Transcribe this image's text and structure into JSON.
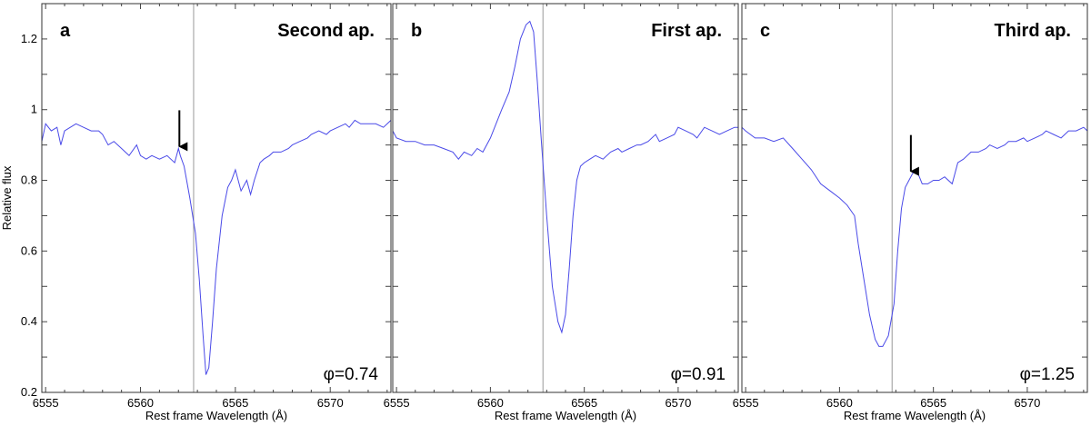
{
  "chart_data": [
    {
      "type": "line",
      "panel_letter": "a",
      "title": "Second ap.",
      "annotation": "φ=0.74",
      "xlabel": "Rest frame Wavelength (Å)",
      "ylabel": "Relative flux",
      "xlim": [
        6554.8,
        6573.2
      ],
      "ylim": [
        0.2,
        1.3
      ],
      "x_ticks": [
        "6555",
        "6560",
        "6565",
        "6570"
      ],
      "y_ticks": [
        "0.2",
        "0.4",
        "0.6",
        "0.8",
        "1",
        "1.2"
      ],
      "rest_wavelength_line": 6562.8,
      "arrow_at": 6562.05,
      "series": [
        {
          "color": "#4a4ae8",
          "x": [
            6554.8,
            6555.0,
            6555.3,
            6555.6,
            6555.8,
            6556.0,
            6556.3,
            6556.6,
            6557.0,
            6557.4,
            6557.8,
            6558.0,
            6558.3,
            6558.6,
            6559.0,
            6559.4,
            6559.8,
            6560.0,
            6560.3,
            6560.6,
            6561.0,
            6561.4,
            6561.8,
            6562.0,
            6562.1,
            6562.3,
            6562.6,
            6562.9,
            6563.1,
            6563.3,
            6563.45,
            6563.6,
            6563.8,
            6564.0,
            6564.3,
            6564.6,
            6564.8,
            6565.0,
            6565.3,
            6565.6,
            6565.8,
            6566.0,
            6566.3,
            6566.5,
            6566.8,
            6567.0,
            6567.4,
            6567.8,
            6568.0,
            6568.4,
            6568.8,
            6569.0,
            6569.4,
            6569.8,
            6570.0,
            6570.4,
            6570.8,
            6571.0,
            6571.3,
            6571.6,
            6572.0,
            6572.4,
            6572.8,
            6573.2
          ],
          "y": [
            0.91,
            0.96,
            0.94,
            0.95,
            0.9,
            0.94,
            0.95,
            0.96,
            0.95,
            0.94,
            0.94,
            0.93,
            0.9,
            0.91,
            0.89,
            0.87,
            0.9,
            0.87,
            0.86,
            0.87,
            0.86,
            0.87,
            0.85,
            0.89,
            0.87,
            0.84,
            0.75,
            0.65,
            0.52,
            0.36,
            0.25,
            0.27,
            0.4,
            0.55,
            0.7,
            0.78,
            0.8,
            0.83,
            0.77,
            0.8,
            0.76,
            0.8,
            0.85,
            0.86,
            0.87,
            0.88,
            0.88,
            0.89,
            0.9,
            0.91,
            0.92,
            0.93,
            0.94,
            0.93,
            0.94,
            0.95,
            0.96,
            0.95,
            0.97,
            0.96,
            0.96,
            0.96,
            0.95,
            0.97
          ]
        }
      ]
    },
    {
      "type": "line",
      "panel_letter": "b",
      "title": "First ap.",
      "annotation": "φ=0.91",
      "xlabel": "Rest frame Wavelength (Å)",
      "ylabel": "",
      "xlim": [
        6554.8,
        6573.2
      ],
      "ylim": [
        0.2,
        1.3
      ],
      "x_ticks": [
        "6555",
        "6560",
        "6565",
        "6570"
      ],
      "y_ticks": [],
      "rest_wavelength_line": 6562.8,
      "series": [
        {
          "color": "#4a4ae8",
          "x": [
            6554.8,
            6555.0,
            6555.5,
            6556.0,
            6556.5,
            6557.0,
            6557.5,
            6558.0,
            6558.3,
            6558.6,
            6559.0,
            6559.3,
            6559.6,
            6560.0,
            6560.3,
            6560.6,
            6561.0,
            6561.3,
            6561.6,
            6561.9,
            6562.1,
            6562.3,
            6562.5,
            6562.7,
            6563.0,
            6563.3,
            6563.6,
            6563.8,
            6564.0,
            6564.2,
            6564.4,
            6564.6,
            6564.8,
            6565.0,
            6565.3,
            6565.6,
            6566.0,
            6566.4,
            6566.8,
            6567.0,
            6567.4,
            6567.8,
            6568.0,
            6568.4,
            6568.8,
            6569.0,
            6569.4,
            6569.8,
            6570.0,
            6570.4,
            6570.8,
            6571.0,
            6571.4,
            6571.8,
            6572.2,
            6572.6,
            6573.0,
            6573.2
          ],
          "y": [
            0.94,
            0.92,
            0.91,
            0.91,
            0.9,
            0.9,
            0.89,
            0.88,
            0.86,
            0.88,
            0.87,
            0.89,
            0.88,
            0.92,
            0.96,
            1.0,
            1.05,
            1.12,
            1.2,
            1.24,
            1.25,
            1.22,
            1.08,
            0.92,
            0.7,
            0.5,
            0.4,
            0.37,
            0.42,
            0.55,
            0.7,
            0.8,
            0.84,
            0.85,
            0.86,
            0.87,
            0.86,
            0.88,
            0.89,
            0.88,
            0.89,
            0.9,
            0.9,
            0.91,
            0.93,
            0.91,
            0.92,
            0.93,
            0.95,
            0.94,
            0.93,
            0.92,
            0.95,
            0.94,
            0.93,
            0.94,
            0.95,
            0.95
          ]
        }
      ]
    },
    {
      "type": "line",
      "panel_letter": "c",
      "title": "Third ap.",
      "annotation": "φ=1.25",
      "xlabel": "Rest frame Wavelength (Å)",
      "ylabel": "",
      "xlim": [
        6554.8,
        6573.2
      ],
      "ylim": [
        0.2,
        1.3
      ],
      "x_ticks": [
        "6555",
        "6560",
        "6565",
        "6570"
      ],
      "y_ticks": [],
      "rest_wavelength_line": 6562.8,
      "arrow_at": 6563.8,
      "series": [
        {
          "color": "#4a4ae8",
          "x": [
            6554.8,
            6555.0,
            6555.5,
            6556.0,
            6556.5,
            6557.0,
            6557.5,
            6558.0,
            6558.5,
            6559.0,
            6559.5,
            6560.0,
            6560.4,
            6560.8,
            6561.0,
            6561.3,
            6561.6,
            6561.9,
            6562.1,
            6562.3,
            6562.6,
            6562.9,
            6563.1,
            6563.3,
            6563.5,
            6563.7,
            6563.9,
            6564.1,
            6564.4,
            6564.7,
            6565.0,
            6565.3,
            6565.6,
            6566.0,
            6566.3,
            6566.6,
            6567.0,
            6567.4,
            6567.8,
            6568.0,
            6568.4,
            6568.8,
            6569.0,
            6569.4,
            6569.8,
            6570.0,
            6570.4,
            6570.8,
            6571.0,
            6571.4,
            6571.8,
            6572.2,
            6572.6,
            6573.0,
            6573.2
          ],
          "y": [
            0.95,
            0.94,
            0.92,
            0.92,
            0.91,
            0.92,
            0.89,
            0.86,
            0.83,
            0.79,
            0.77,
            0.75,
            0.73,
            0.7,
            0.62,
            0.52,
            0.42,
            0.35,
            0.33,
            0.33,
            0.36,
            0.45,
            0.6,
            0.72,
            0.78,
            0.8,
            0.82,
            0.83,
            0.79,
            0.79,
            0.8,
            0.8,
            0.81,
            0.79,
            0.85,
            0.86,
            0.88,
            0.88,
            0.89,
            0.9,
            0.89,
            0.9,
            0.91,
            0.91,
            0.92,
            0.91,
            0.92,
            0.93,
            0.94,
            0.93,
            0.92,
            0.94,
            0.94,
            0.95,
            0.94
          ]
        }
      ]
    }
  ]
}
